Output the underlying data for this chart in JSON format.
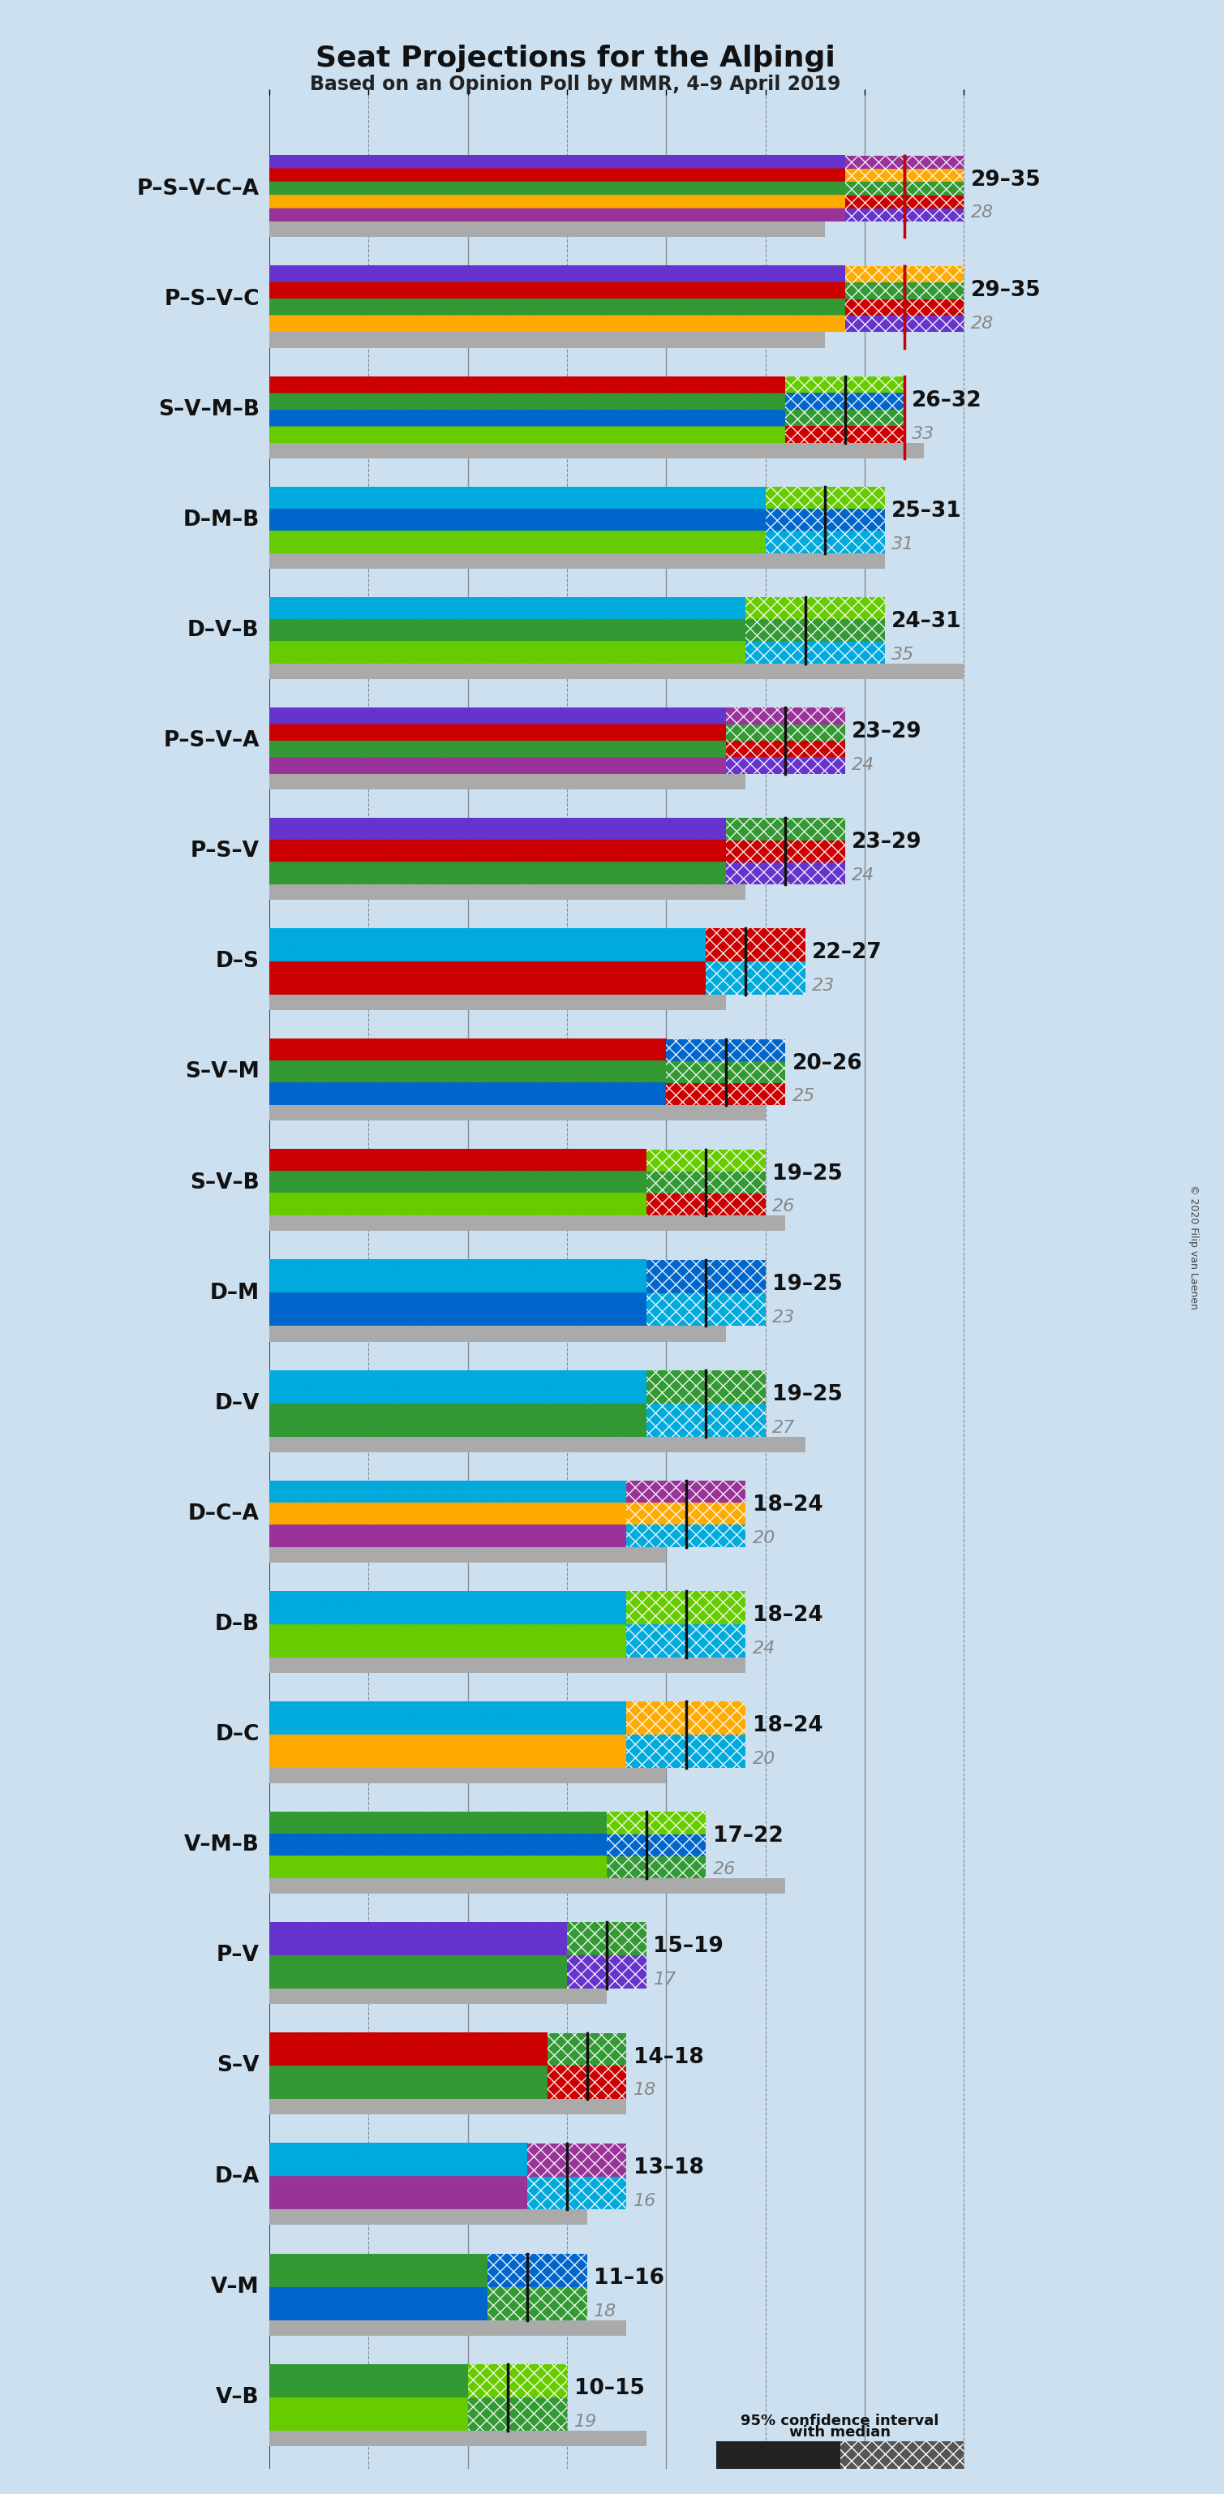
{
  "title": "Seat Projections for the Alþingi",
  "subtitle": "Based on an Opinion Poll by MMR, 4–9 April 2019",
  "background_color": "#cce0f0",
  "coalitions": [
    {
      "name": "P–S–V–C–A",
      "ci_low": 29,
      "ci_high": 35,
      "median": 32,
      "last": 28,
      "parties": [
        "P",
        "S",
        "V",
        "C",
        "A"
      ],
      "colors": [
        "#6633cc",
        "#cc0000",
        "#339933",
        "#ffaa00",
        "#993399"
      ],
      "majority_line": true
    },
    {
      "name": "P–S–V–C",
      "ci_low": 29,
      "ci_high": 35,
      "median": 32,
      "last": 28,
      "parties": [
        "P",
        "S",
        "V",
        "C"
      ],
      "colors": [
        "#6633cc",
        "#cc0000",
        "#339933",
        "#ffaa00"
      ],
      "majority_line": true
    },
    {
      "name": "S–V–M–B",
      "ci_low": 26,
      "ci_high": 32,
      "median": 29,
      "last": 33,
      "parties": [
        "S",
        "V",
        "M",
        "B"
      ],
      "colors": [
        "#cc0000",
        "#339933",
        "#0066cc",
        "#66cc00"
      ],
      "majority_line": true
    },
    {
      "name": "D–M–B",
      "ci_low": 25,
      "ci_high": 31,
      "median": 28,
      "last": 31,
      "parties": [
        "D",
        "M",
        "B"
      ],
      "colors": [
        "#00aadd",
        "#0066cc",
        "#66cc00"
      ],
      "majority_line": false
    },
    {
      "name": "D–V–B",
      "ci_low": 24,
      "ci_high": 31,
      "median": 27,
      "last": 35,
      "parties": [
        "D",
        "V",
        "B"
      ],
      "colors": [
        "#00aadd",
        "#339933",
        "#66cc00"
      ],
      "majority_line": false
    },
    {
      "name": "P–S–V–A",
      "ci_low": 23,
      "ci_high": 29,
      "median": 26,
      "last": 24,
      "parties": [
        "P",
        "S",
        "V",
        "A"
      ],
      "colors": [
        "#6633cc",
        "#cc0000",
        "#339933",
        "#993399"
      ],
      "majority_line": false
    },
    {
      "name": "P–S–V",
      "ci_low": 23,
      "ci_high": 29,
      "median": 26,
      "last": 24,
      "parties": [
        "P",
        "S",
        "V"
      ],
      "colors": [
        "#6633cc",
        "#cc0000",
        "#339933"
      ],
      "majority_line": false
    },
    {
      "name": "D–S",
      "ci_low": 22,
      "ci_high": 27,
      "median": 24,
      "last": 23,
      "parties": [
        "D",
        "S"
      ],
      "colors": [
        "#00aadd",
        "#cc0000"
      ],
      "majority_line": false
    },
    {
      "name": "S–V–M",
      "ci_low": 20,
      "ci_high": 26,
      "median": 23,
      "last": 25,
      "parties": [
        "S",
        "V",
        "M"
      ],
      "colors": [
        "#cc0000",
        "#339933",
        "#0066cc"
      ],
      "majority_line": false
    },
    {
      "name": "S–V–B",
      "ci_low": 19,
      "ci_high": 25,
      "median": 22,
      "last": 26,
      "parties": [
        "S",
        "V",
        "B"
      ],
      "colors": [
        "#cc0000",
        "#339933",
        "#66cc00"
      ],
      "majority_line": false
    },
    {
      "name": "D–M",
      "ci_low": 19,
      "ci_high": 25,
      "median": 22,
      "last": 23,
      "parties": [
        "D",
        "M"
      ],
      "colors": [
        "#00aadd",
        "#0066cc"
      ],
      "majority_line": false
    },
    {
      "name": "D–V",
      "ci_low": 19,
      "ci_high": 25,
      "median": 22,
      "last": 27,
      "parties": [
        "D",
        "V"
      ],
      "colors": [
        "#00aadd",
        "#339933"
      ],
      "majority_line": false
    },
    {
      "name": "D–C–A",
      "ci_low": 18,
      "ci_high": 24,
      "median": 21,
      "last": 20,
      "parties": [
        "D",
        "C",
        "A"
      ],
      "colors": [
        "#00aadd",
        "#ffaa00",
        "#993399"
      ],
      "majority_line": false
    },
    {
      "name": "D–B",
      "ci_low": 18,
      "ci_high": 24,
      "median": 21,
      "last": 24,
      "parties": [
        "D",
        "B"
      ],
      "colors": [
        "#00aadd",
        "#66cc00"
      ],
      "majority_line": false
    },
    {
      "name": "D–C",
      "ci_low": 18,
      "ci_high": 24,
      "median": 21,
      "last": 20,
      "parties": [
        "D",
        "C"
      ],
      "colors": [
        "#00aadd",
        "#ffaa00"
      ],
      "majority_line": false
    },
    {
      "name": "V–M–B",
      "ci_low": 17,
      "ci_high": 22,
      "median": 19,
      "last": 26,
      "parties": [
        "V",
        "M",
        "B"
      ],
      "colors": [
        "#339933",
        "#0066cc",
        "#66cc00"
      ],
      "majority_line": false
    },
    {
      "name": "P–V",
      "ci_low": 15,
      "ci_high": 19,
      "median": 17,
      "last": 17,
      "parties": [
        "P",
        "V"
      ],
      "colors": [
        "#6633cc",
        "#339933"
      ],
      "majority_line": false
    },
    {
      "name": "S–V",
      "ci_low": 14,
      "ci_high": 18,
      "median": 16,
      "last": 18,
      "parties": [
        "S",
        "V"
      ],
      "colors": [
        "#cc0000",
        "#339933"
      ],
      "majority_line": false
    },
    {
      "name": "D–A",
      "ci_low": 13,
      "ci_high": 18,
      "median": 15,
      "last": 16,
      "parties": [
        "D",
        "A"
      ],
      "colors": [
        "#00aadd",
        "#993399"
      ],
      "majority_line": false
    },
    {
      "name": "V–M",
      "ci_low": 11,
      "ci_high": 16,
      "median": 13,
      "last": 18,
      "parties": [
        "V",
        "M"
      ],
      "colors": [
        "#339933",
        "#0066cc"
      ],
      "majority_line": false
    },
    {
      "name": "V–B",
      "ci_low": 10,
      "ci_high": 15,
      "median": 12,
      "last": 19,
      "parties": [
        "V",
        "B"
      ],
      "colors": [
        "#339933",
        "#66cc00"
      ],
      "majority_line": false
    }
  ],
  "majority_seat": 32,
  "x_max": 37,
  "x_ticks": [
    0,
    5,
    10,
    15,
    20,
    25,
    30,
    35
  ],
  "gray_bar_color": "#aaaaaa",
  "majority_line_color": "#cc0000",
  "label_fontsize": 19,
  "range_fontsize": 19,
  "last_fontsize": 16,
  "title_fontsize": 26,
  "subtitle_fontsize": 17,
  "copyright_text": "© 2020 Filip van Laenen"
}
